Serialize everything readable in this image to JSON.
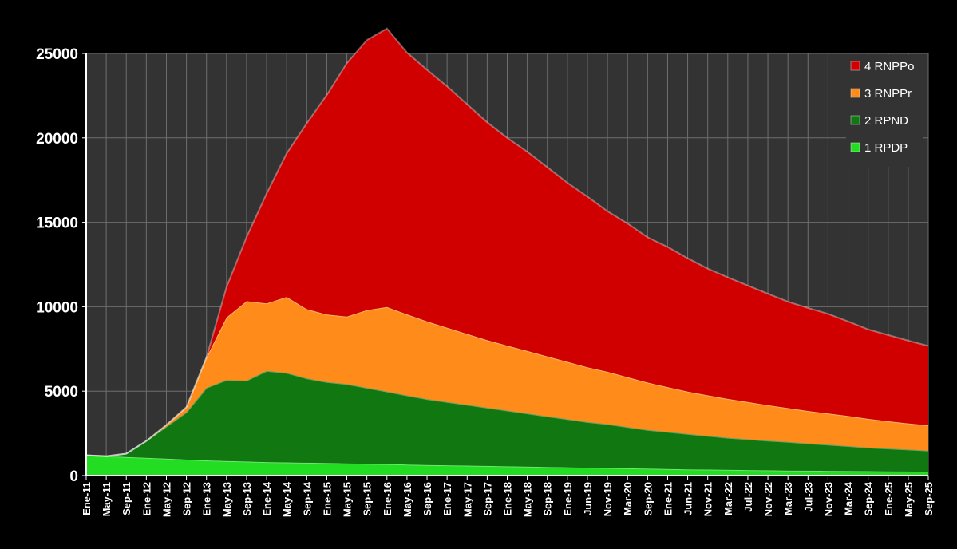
{
  "chart_data": {
    "type": "area",
    "stacked": true,
    "title": "",
    "xlabel": "",
    "ylabel": "",
    "ylim": [
      0,
      25000
    ],
    "yticks": [
      0,
      5000,
      10000,
      15000,
      20000,
      25000
    ],
    "grid": true,
    "legend_position": "top-right",
    "xticks": [
      "Ene-11",
      "May-11",
      "Sep-11",
      "Ene-12",
      "May-12",
      "Sep-12",
      "Ene-13",
      "May-13",
      "Sep-13",
      "Ene-14",
      "May-14",
      "Sep-14",
      "Ene-15",
      "May-15",
      "Sep-15",
      "Ene-16",
      "May-16",
      "Sep-16",
      "Ene-17",
      "May-17",
      "Sep-17",
      "Ene-18",
      "May-18",
      "Sep-18",
      "Ene-19",
      "Jun-19",
      "Nov-19",
      "Mar-20",
      "Sep-20",
      "Ene-21",
      "Jun-21",
      "Nov-21",
      "Mar-22",
      "Jul-22",
      "Nov-22",
      "Mar-23",
      "Jul-23",
      "Nov-23",
      "Mar-24",
      "Sep-24",
      "Ene-25",
      "May-25",
      "Sep-25"
    ],
    "series": [
      {
        "name": "1 RPDP",
        "color": "#22dd22",
        "values": [
          1200,
          1150,
          1100,
          1050,
          1000,
          950,
          900,
          860,
          830,
          800,
          780,
          760,
          740,
          720,
          700,
          680,
          650,
          630,
          610,
          590,
          570,
          550,
          530,
          510,
          490,
          470,
          450,
          430,
          410,
          390,
          370,
          355,
          340,
          325,
          310,
          300,
          290,
          280,
          270,
          260,
          250,
          240,
          230
        ]
      },
      {
        "name": "2 RPND",
        "color": "#117711",
        "values": [
          0,
          0,
          200,
          1000,
          1900,
          2800,
          4300,
          4800,
          4800,
          5400,
          5300,
          5000,
          4800,
          4700,
          4500,
          4300,
          4100,
          3900,
          3750,
          3600,
          3450,
          3300,
          3150,
          3000,
          2850,
          2700,
          2600,
          2450,
          2300,
          2200,
          2100,
          2000,
          1900,
          1830,
          1760,
          1700,
          1620,
          1550,
          1480,
          1400,
          1350,
          1300,
          1250
        ]
      },
      {
        "name": "3 RNPPr",
        "color": "#ff8c1a",
        "values": [
          0,
          0,
          0,
          0,
          100,
          300,
          1800,
          3700,
          4700,
          4000,
          4500,
          4100,
          4000,
          4000,
          4600,
          5000,
          4800,
          4600,
          4400,
          4200,
          4000,
          3850,
          3700,
          3550,
          3400,
          3250,
          3100,
          2950,
          2800,
          2650,
          2500,
          2400,
          2300,
          2200,
          2100,
          2000,
          1920,
          1850,
          1780,
          1700,
          1620,
          1550,
          1500
        ]
      },
      {
        "name": "4 RNPPo",
        "color": "#d00000",
        "values": [
          0,
          0,
          0,
          0,
          0,
          0,
          0,
          1800,
          3800,
          6500,
          8500,
          11000,
          13000,
          15000,
          16000,
          16500,
          15500,
          14900,
          14300,
          13600,
          12900,
          12300,
          11800,
          11200,
          10600,
          10100,
          9500,
          9100,
          8600,
          8300,
          7900,
          7500,
          7200,
          6900,
          6600,
          6300,
          6100,
          5900,
          5600,
          5300,
          5100,
          4900,
          4700
        ]
      }
    ]
  }
}
